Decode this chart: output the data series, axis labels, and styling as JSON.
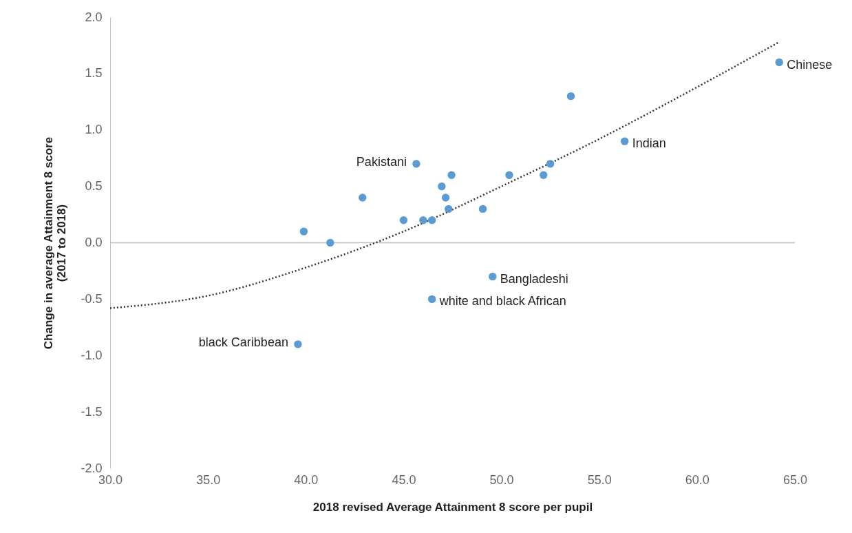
{
  "chart_data": {
    "type": "scatter",
    "xlabel": "2018 revised Average Attainment 8 score per pupil",
    "ylabel": "Change in average Attainment 8 score\n(2017 to 2018)",
    "xlim": [
      30,
      65
    ],
    "ylim": [
      -2,
      2
    ],
    "xticks": [
      {
        "value": 30,
        "label": "30.0"
      },
      {
        "value": 35,
        "label": "35.0"
      },
      {
        "value": 40,
        "label": "40.0"
      },
      {
        "value": 45,
        "label": "45.0"
      },
      {
        "value": 50,
        "label": "50.0"
      },
      {
        "value": 55,
        "label": "55.0"
      },
      {
        "value": 60,
        "label": "60.0"
      },
      {
        "value": 65,
        "label": "65.0"
      }
    ],
    "yticks": [
      {
        "value": -2,
        "label": "-2.0"
      },
      {
        "value": -1.5,
        "label": "-1.5"
      },
      {
        "value": -1,
        "label": "-1.0"
      },
      {
        "value": -0.5,
        "label": "-0.5"
      },
      {
        "value": 0,
        "label": "0.0"
      },
      {
        "value": 0.5,
        "label": "0.5"
      },
      {
        "value": 1,
        "label": "1.0"
      },
      {
        "value": 1.5,
        "label": "1.5"
      },
      {
        "value": 2,
        "label": "2.0"
      }
    ],
    "grid": false,
    "ref_lines": [
      {
        "axis": "y",
        "value": 0,
        "color": "#bfbfbf"
      }
    ],
    "series": [
      {
        "type": "scatter",
        "color": "#5b9bd5",
        "marker": "circle",
        "x": [
          39.6,
          39.9,
          41.25,
          42.9,
          45.0,
          45.65,
          46.0,
          46.45,
          46.45,
          46.95,
          47.15,
          47.3,
          47.45,
          49.05,
          49.55,
          50.4,
          52.15,
          52.5,
          53.55,
          56.3,
          64.2
        ],
        "values": [
          -0.9,
          0.1,
          0.0,
          0.4,
          0.2,
          0.7,
          0.2,
          0.2,
          -0.5,
          0.5,
          0.4,
          0.3,
          0.6,
          0.3,
          -0.3,
          0.6,
          0.6,
          0.7,
          1.3,
          0.9,
          1.6
        ]
      },
      {
        "type": "line",
        "color": "#333333",
        "line_style": "dotted",
        "marker": "none",
        "x": [
          30,
          35,
          40,
          45,
          50,
          55,
          60,
          64.2
        ],
        "values": [
          -0.58,
          -0.47,
          -0.22,
          0.1,
          0.5,
          0.92,
          1.38,
          1.78
        ]
      }
    ],
    "annotations": [
      {
        "text": "Chinese",
        "x": 64.2,
        "y": 1.6
      },
      {
        "text": "Indian",
        "x": 56.3,
        "y": 0.9
      },
      {
        "text": "Pakistani",
        "x": 45.65,
        "y": 0.7
      },
      {
        "text": "Bangladeshi",
        "x": 49.55,
        "y": -0.3
      },
      {
        "text": "white and black African",
        "x": 46.45,
        "y": -0.5
      },
      {
        "text": "black Caribbean",
        "x": 39.6,
        "y": -0.9
      }
    ]
  }
}
